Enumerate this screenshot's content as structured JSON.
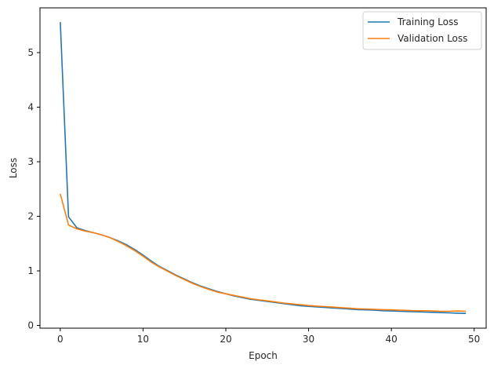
{
  "chart_data": {
    "type": "line",
    "title": "",
    "xlabel": "Epoch",
    "ylabel": "Loss",
    "xlim": [
      -2.45,
      51.45
    ],
    "ylim": [
      -0.05,
      5.82
    ],
    "xticks": [
      0,
      10,
      20,
      30,
      40,
      50
    ],
    "yticks": [
      0,
      1,
      2,
      3,
      4,
      5
    ],
    "grid": false,
    "legend_position": "upper right",
    "x": [
      0,
      1,
      2,
      3,
      4,
      5,
      6,
      7,
      8,
      9,
      10,
      11,
      12,
      13,
      14,
      15,
      16,
      17,
      18,
      19,
      20,
      21,
      22,
      23,
      24,
      25,
      26,
      27,
      28,
      29,
      30,
      31,
      32,
      33,
      34,
      35,
      36,
      37,
      38,
      39,
      40,
      41,
      42,
      43,
      44,
      45,
      46,
      47,
      48,
      49
    ],
    "series": [
      {
        "name": "Training Loss",
        "color": "#1f77b4",
        "values": [
          5.56,
          1.99,
          1.79,
          1.74,
          1.7,
          1.66,
          1.61,
          1.55,
          1.48,
          1.39,
          1.29,
          1.18,
          1.08,
          1.0,
          0.92,
          0.85,
          0.78,
          0.72,
          0.67,
          0.62,
          0.58,
          0.54,
          0.51,
          0.48,
          0.46,
          0.44,
          0.42,
          0.4,
          0.38,
          0.36,
          0.35,
          0.34,
          0.33,
          0.32,
          0.31,
          0.3,
          0.29,
          0.285,
          0.28,
          0.27,
          0.265,
          0.26,
          0.255,
          0.25,
          0.245,
          0.24,
          0.235,
          0.23,
          0.225,
          0.22
        ]
      },
      {
        "name": "Validation Loss",
        "color": "#ff7f0e",
        "values": [
          2.41,
          1.84,
          1.77,
          1.73,
          1.7,
          1.66,
          1.61,
          1.54,
          1.46,
          1.37,
          1.27,
          1.16,
          1.07,
          0.99,
          0.91,
          0.84,
          0.77,
          0.71,
          0.66,
          0.61,
          0.58,
          0.55,
          0.52,
          0.49,
          0.47,
          0.45,
          0.43,
          0.41,
          0.395,
          0.38,
          0.365,
          0.355,
          0.345,
          0.335,
          0.325,
          0.315,
          0.305,
          0.3,
          0.295,
          0.29,
          0.285,
          0.28,
          0.275,
          0.27,
          0.27,
          0.265,
          0.26,
          0.26,
          0.265,
          0.26
        ]
      }
    ]
  }
}
